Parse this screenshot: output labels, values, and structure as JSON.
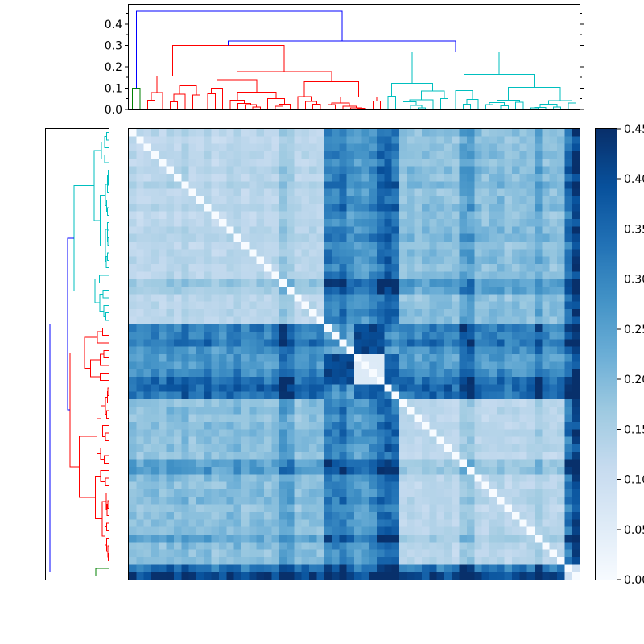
{
  "figure": {
    "background": "#ffffff"
  },
  "chart_data": {
    "type": "heatmap",
    "title": "",
    "description": "Hierarchical clustering: top and left dendrograms flanking a symmetric distance-matrix heatmap (Blues colormap) with a vertical colorbar on the right",
    "n": 60,
    "colormap": "Blues",
    "value_range": [
      0,
      0.45
    ],
    "top_dendrogram": {
      "ylim": [
        0,
        0.49
      ],
      "yticks": [
        0,
        0.1,
        0.2,
        0.3,
        0.4
      ],
      "ytick_labels": [
        "0.0",
        "0.1",
        "0.2",
        "0.3",
        "0.4"
      ],
      "minor_ticks": [
        0.05,
        0.15,
        0.25,
        0.35,
        0.45
      ],
      "root_height": 0.46,
      "root_color": "#0000ff",
      "join_height": 0.32,
      "clusters": [
        {
          "name": "green",
          "color": "#008000",
          "start": 0,
          "size": 2,
          "height": 0.1
        },
        {
          "name": "red",
          "color": "#ff0000",
          "start": 2,
          "size": 32,
          "height": 0.3
        },
        {
          "name": "cyan",
          "color": "#00bfbf",
          "start": 34,
          "size": 26,
          "height": 0.27
        }
      ]
    },
    "left_dendrogram": {
      "xlim": [
        0,
        0.49
      ],
      "root_height": 0.46,
      "root_color": "#0000ff",
      "join_height": 0.32,
      "clusters": [
        {
          "name": "cyan",
          "color": "#00bfbf",
          "start": 0,
          "size": 26,
          "height": 0.27
        },
        {
          "name": "red",
          "color": "#ff0000",
          "start": 26,
          "size": 32,
          "height": 0.3
        },
        {
          "name": "green",
          "color": "#008000",
          "start": 58,
          "size": 2,
          "height": 0.1
        }
      ]
    },
    "matrix": {
      "seed": 7,
      "noise": 0.13,
      "clusters": [
        {
          "id": "A",
          "start": 0,
          "end": 25
        },
        {
          "id": "B",
          "start": 26,
          "end": 35
        },
        {
          "id": "C",
          "start": 36,
          "end": 57
        },
        {
          "id": "D",
          "start": 58,
          "end": 59
        }
      ],
      "base": {
        "AA": 0.13,
        "AB": 0.3,
        "AC": 0.195,
        "AD": 0.32,
        "BB": 0.24,
        "BC": 0.3,
        "BD": 0.36,
        "CC": 0.135,
        "CD": 0.31,
        "DD": 0.07
      },
      "factors": [
        1.0,
        0.93,
        0.97,
        1.02,
        0.95,
        1.06,
        0.98,
        1.1,
        0.94,
        1.0,
        1.05,
        0.92,
        0.98,
        1.03,
        1.08,
        0.95,
        1.0,
        1.04,
        0.96,
        1.0,
        1.32,
        1.26,
        0.96,
        1.0,
        1.05,
        0.98,
        1.06,
        1.0,
        1.1,
        0.92,
        0.86,
        0.88,
        0.96,
        1.12,
        1.2,
        1.14,
        0.95,
        1.0,
        0.92,
        1.0,
        1.04,
        0.96,
        1.0,
        0.93,
        1.28,
        1.32,
        1.0,
        0.96,
        1.0,
        1.05,
        0.92,
        1.0,
        0.97,
        1.0,
        1.22,
        1.0,
        0.96,
        1.0,
        1.05,
        1.32
      ],
      "overrides": [
        {
          "r0": 30,
          "r1": 33,
          "c0": 30,
          "c1": 33,
          "v": 0.06
        },
        {
          "r0": 26,
          "r1": 29,
          "c0": 30,
          "c1": 33,
          "v": 0.41
        },
        {
          "r0": 34,
          "r1": 35,
          "c0": 30,
          "c1": 33,
          "v": 0.37
        }
      ]
    },
    "colorbar": {
      "ticks": [
        0,
        0.05,
        0.1,
        0.15,
        0.2,
        0.25,
        0.3,
        0.35,
        0.4,
        0.45
      ],
      "tick_labels": [
        "0.00",
        "0.05",
        "0.10",
        "0.15",
        "0.20",
        "0.25",
        "0.30",
        "0.35",
        "0.40",
        "0.45"
      ],
      "stops": [
        [
          0,
          "#f7fbff"
        ],
        [
          0.125,
          "#deebf7"
        ],
        [
          0.25,
          "#c6dbef"
        ],
        [
          0.375,
          "#9ecae1"
        ],
        [
          0.5,
          "#6baed6"
        ],
        [
          0.625,
          "#4292c6"
        ],
        [
          0.75,
          "#2171b5"
        ],
        [
          0.875,
          "#08519c"
        ],
        [
          1,
          "#08306b"
        ]
      ]
    }
  }
}
